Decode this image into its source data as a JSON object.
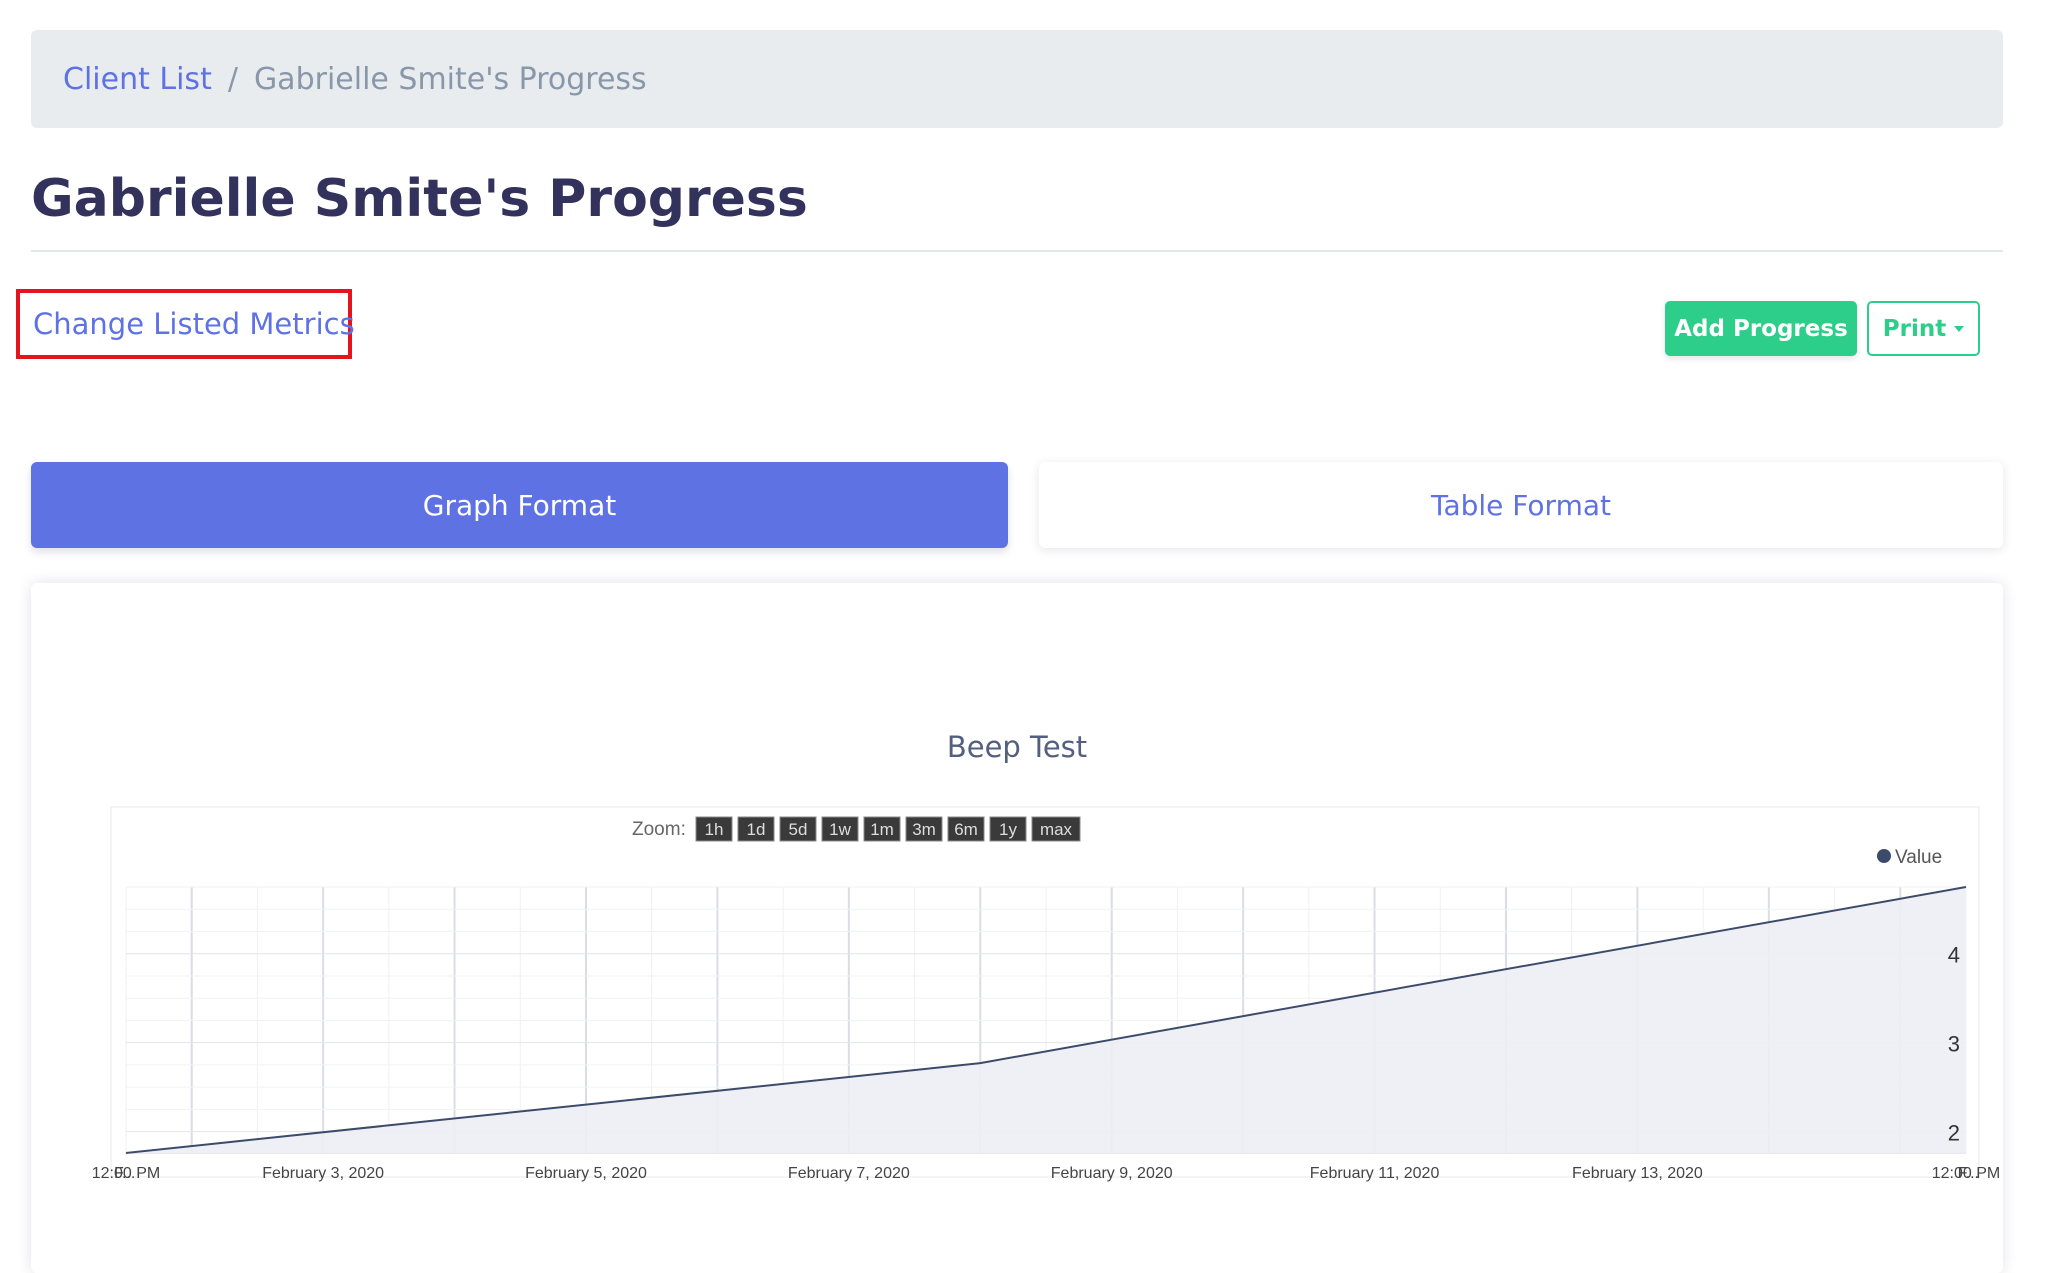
{
  "breadcrumb": {
    "items": [
      {
        "label": "Client List"
      },
      {
        "label": "Gabrielle Smite's Progress"
      }
    ],
    "separator": "/"
  },
  "page": {
    "title": "Gabrielle Smite's Progress",
    "change_metrics_label": "Change Listed Metrics"
  },
  "actions": {
    "add_progress_label": "Add Progress",
    "print_label": "Print"
  },
  "tabs": [
    {
      "label": "Graph Format",
      "active": true
    },
    {
      "label": "Table Format",
      "active": false
    }
  ],
  "zoom": {
    "label": "Zoom:",
    "options": [
      "1h",
      "1d",
      "5d",
      "1w",
      "1m",
      "3m",
      "6m",
      "1y",
      "max"
    ]
  },
  "colors": {
    "primary": "#5e72e4",
    "success": "#2dce89",
    "highlight": "#e3141e",
    "series": "#3d4b6b",
    "series_fill": "#eceef5"
  },
  "chart_data": {
    "type": "area",
    "title": "Beep Test",
    "legend": {
      "labels": [
        "Value"
      ],
      "position": "top-right"
    },
    "grid": true,
    "x_type": "date",
    "x_range": [
      "2020-02-01T12:00",
      "2020-02-15T12:00"
    ],
    "x_ticks": [
      {
        "x": "2020-02-01T00:00",
        "label": "F..."
      },
      {
        "x": "2020-02-01T12:00",
        "label": "12:00 PM"
      },
      {
        "x": "2020-02-03T00:00",
        "label": "February 3, 2020"
      },
      {
        "x": "2020-02-05T00:00",
        "label": "February 5, 2020"
      },
      {
        "x": "2020-02-07T00:00",
        "label": "February 7, 2020"
      },
      {
        "x": "2020-02-09T00:00",
        "label": "February 9, 2020"
      },
      {
        "x": "2020-02-11T00:00",
        "label": "February 11, 2020"
      },
      {
        "x": "2020-02-13T00:00",
        "label": "February 13, 2020"
      },
      {
        "x": "2020-02-15T12:00",
        "label": "12:00 PM"
      },
      {
        "x": "2020-02-16T00:00",
        "label": "F..."
      }
    ],
    "y_axis": {
      "position": "right",
      "ticks": [
        2,
        3,
        4
      ],
      "ylim": [
        1.76,
        4.75
      ]
    },
    "series": [
      {
        "name": "Value",
        "points": [
          {
            "x": "2020-02-01T12:00",
            "y": 1.76
          },
          {
            "x": "2020-02-08T00:00",
            "y": 2.77
          },
          {
            "x": "2020-02-15T12:00",
            "y": 4.75
          }
        ]
      }
    ]
  }
}
